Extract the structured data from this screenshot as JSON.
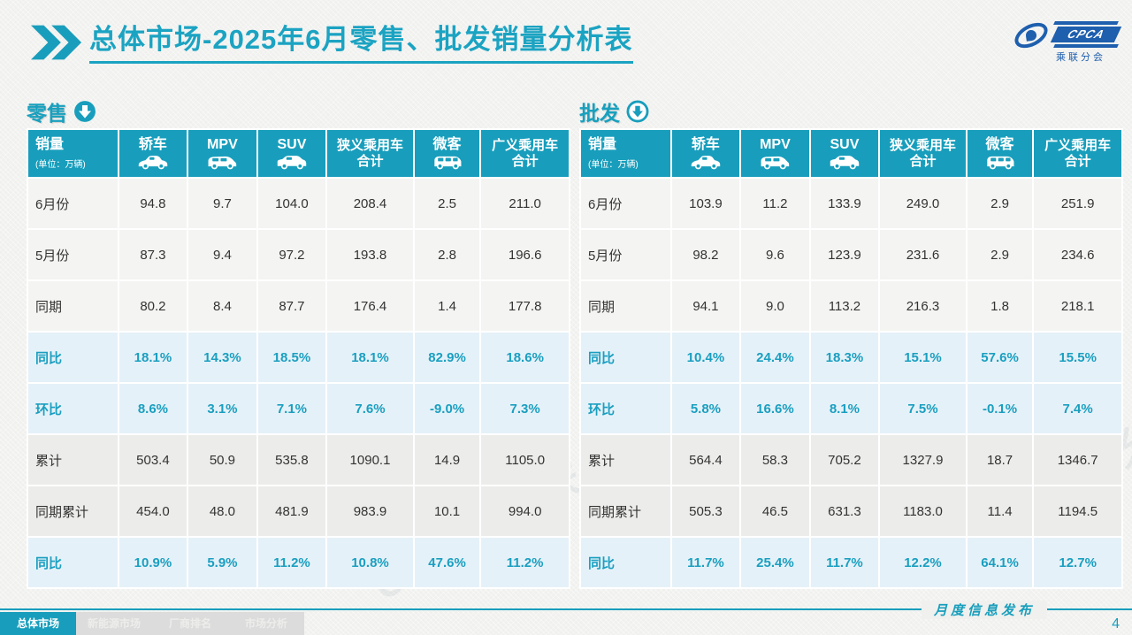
{
  "title": {
    "text": "总体市场-2025年6月零售、批发销量分析表"
  },
  "logo": {
    "name": "CPCA",
    "subtitle": "乘联分会"
  },
  "columns": [
    {
      "label": "销量",
      "sub": "(单位：万辆)"
    },
    {
      "label": "轿车",
      "icon": "sedan-icon"
    },
    {
      "label": "MPV",
      "icon": "mpv-icon"
    },
    {
      "label": "SUV",
      "icon": "suv-icon"
    },
    {
      "label": "狭义乘用车",
      "label2": "合计"
    },
    {
      "label": "微客",
      "icon": "microvan-icon"
    },
    {
      "label": "广义乘用车",
      "label2": "合计"
    }
  ],
  "retail": {
    "label": "零售",
    "rows": [
      {
        "label": "6月份",
        "type": "plain",
        "values": [
          "94.8",
          "9.7",
          "104.0",
          "208.4",
          "2.5",
          "211.0"
        ]
      },
      {
        "label": "5月份",
        "type": "plain",
        "values": [
          "87.3",
          "9.4",
          "97.2",
          "193.8",
          "2.8",
          "196.6"
        ]
      },
      {
        "label": "同期",
        "type": "plain",
        "values": [
          "80.2",
          "8.4",
          "87.7",
          "176.4",
          "1.4",
          "177.8"
        ]
      },
      {
        "label": "同比",
        "type": "pct",
        "values": [
          "18.1%",
          "14.3%",
          "18.5%",
          "18.1%",
          "82.9%",
          "18.6%"
        ]
      },
      {
        "label": "环比",
        "type": "pct",
        "values": [
          "8.6%",
          "3.1%",
          "7.1%",
          "7.6%",
          "-9.0%",
          "7.3%"
        ]
      },
      {
        "label": "累计",
        "type": "cum",
        "values": [
          "503.4",
          "50.9",
          "535.8",
          "1090.1",
          "14.9",
          "1105.0"
        ]
      },
      {
        "label": "同期累计",
        "type": "cum",
        "values": [
          "454.0",
          "48.0",
          "481.9",
          "983.9",
          "10.1",
          "994.0"
        ]
      },
      {
        "label": "同比",
        "type": "pct",
        "values": [
          "10.9%",
          "5.9%",
          "11.2%",
          "10.8%",
          "47.6%",
          "11.2%"
        ]
      }
    ]
  },
  "wholesale": {
    "label": "批发",
    "rows": [
      {
        "label": "6月份",
        "type": "plain",
        "values": [
          "103.9",
          "11.2",
          "133.9",
          "249.0",
          "2.9",
          "251.9"
        ]
      },
      {
        "label": "5月份",
        "type": "plain",
        "values": [
          "98.2",
          "9.6",
          "123.9",
          "231.6",
          "2.9",
          "234.6"
        ]
      },
      {
        "label": "同期",
        "type": "plain",
        "values": [
          "94.1",
          "9.0",
          "113.2",
          "216.3",
          "1.8",
          "218.1"
        ]
      },
      {
        "label": "同比",
        "type": "pct",
        "values": [
          "10.4%",
          "24.4%",
          "18.3%",
          "15.1%",
          "57.6%",
          "15.5%"
        ]
      },
      {
        "label": "环比",
        "type": "pct",
        "values": [
          "5.8%",
          "16.6%",
          "8.1%",
          "7.5%",
          "-0.1%",
          "7.4%"
        ]
      },
      {
        "label": "累计",
        "type": "cum",
        "values": [
          "564.4",
          "58.3",
          "705.2",
          "1327.9",
          "18.7",
          "1346.7"
        ]
      },
      {
        "label": "同期累计",
        "type": "cum",
        "values": [
          "505.3",
          "46.5",
          "631.3",
          "1183.0",
          "11.4",
          "1194.5"
        ]
      },
      {
        "label": "同比",
        "type": "pct",
        "values": [
          "11.7%",
          "25.4%",
          "11.7%",
          "12.2%",
          "64.1%",
          "12.7%"
        ]
      }
    ]
  },
  "footer": {
    "tabs": [
      {
        "label": "总体市场",
        "active": true
      },
      {
        "label": "新能源市场",
        "active": false
      },
      {
        "label": "厂商排名",
        "active": false
      },
      {
        "label": "市场分析",
        "active": false
      }
    ],
    "note": "月度信息发布",
    "page": "4"
  },
  "colors": {
    "accent": "#189EBC",
    "pct_row_bg": "#E5F1F8",
    "cum_row_bg": "#ECECEA",
    "logo_blue": "#1E5FAE"
  },
  "decor": {
    "watermark": "CPCA 乘联分会"
  }
}
